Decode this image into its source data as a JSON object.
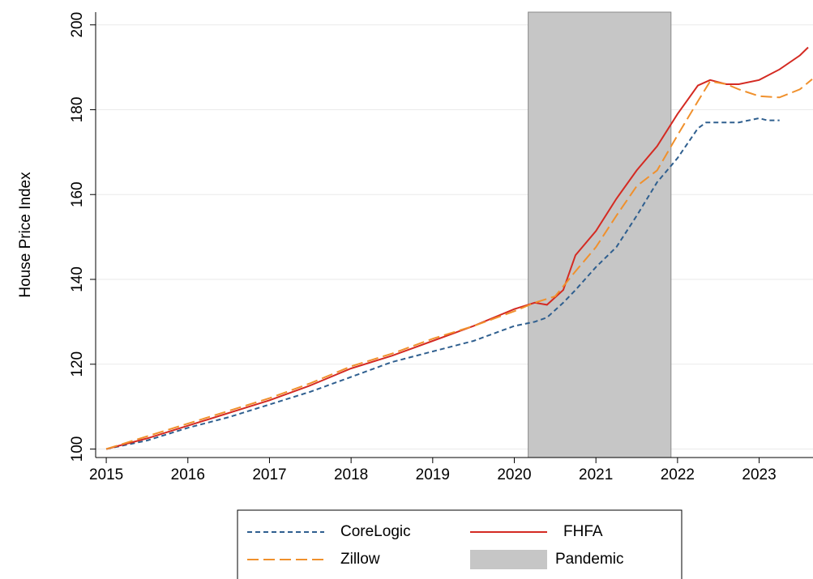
{
  "chart_data": {
    "type": "line",
    "y_label": "House Price Index",
    "xlim": [
      2014.87,
      2023.66
    ],
    "ylim": [
      98,
      203
    ],
    "xticks": [
      2015,
      2016,
      2017,
      2018,
      2019,
      2020,
      2021,
      2022,
      2023
    ],
    "yticks": [
      100,
      120,
      140,
      160,
      180,
      200
    ],
    "grid": true,
    "series": [
      {
        "name": "CoreLogic",
        "color": "#2f5f8f",
        "dash": "6,4",
        "x": [
          2015,
          2015.5,
          2016,
          2016.5,
          2017,
          2017.5,
          2018,
          2018.5,
          2019,
          2019.5,
          2020,
          2020.25,
          2020.4,
          2020.6,
          2020.75,
          2021,
          2021.25,
          2021.5,
          2021.75,
          2022,
          2022.25,
          2022.35,
          2022.75,
          2023,
          2023.1,
          2023.25
        ],
        "values": [
          100,
          102,
          105,
          107.5,
          110.5,
          113.5,
          117,
          120.5,
          123,
          125.5,
          129,
          130,
          131,
          134.5,
          137.5,
          142.9,
          147.6,
          155,
          162.9,
          168.6,
          175.6,
          177,
          177,
          178,
          177.5,
          177.5
        ]
      },
      {
        "name": "FHFA",
        "color": "#d42a22",
        "dash": "none",
        "x": [
          2015,
          2015.5,
          2016,
          2016.5,
          2017,
          2017.5,
          2018,
          2018.5,
          2019,
          2019.5,
          2020,
          2020.25,
          2020.4,
          2020.6,
          2020.75,
          2021,
          2021.25,
          2021.5,
          2021.75,
          2022,
          2022.25,
          2022.4,
          2022.6,
          2022.75,
          2023,
          2023.25,
          2023.5,
          2023.6
        ],
        "values": [
          100,
          102.5,
          105.5,
          108.5,
          111.5,
          115,
          119,
          122,
          125.5,
          129,
          133,
          134.5,
          134,
          137.5,
          145.7,
          151.4,
          159,
          165.7,
          171.4,
          179,
          185.7,
          187,
          186,
          186,
          187,
          189.5,
          192.8,
          194.7
        ]
      },
      {
        "name": "Zillow",
        "color": "#f0902c",
        "dash": "14,6",
        "x": [
          2015,
          2015.5,
          2016,
          2016.5,
          2017,
          2017.5,
          2018,
          2018.5,
          2019,
          2019.5,
          2020,
          2020.25,
          2020.5,
          2020.75,
          2021,
          2021.25,
          2021.5,
          2021.75,
          2022,
          2022.25,
          2022.4,
          2022.6,
          2022.75,
          2023,
          2023.25,
          2023.5,
          2023.65
        ],
        "values": [
          100,
          103,
          106,
          109,
          112,
          115.5,
          119.5,
          122.5,
          126,
          129,
          132.5,
          134.5,
          136,
          141.9,
          147.6,
          155,
          162,
          165.7,
          174,
          182,
          186.7,
          186,
          184.8,
          183.2,
          182.9,
          184.8,
          187.2
        ]
      }
    ],
    "shaded_regions": [
      {
        "name": "Pandemic",
        "color": "#c6c6c6",
        "x": [
          2020.17,
          2021.92
        ]
      }
    ]
  }
}
